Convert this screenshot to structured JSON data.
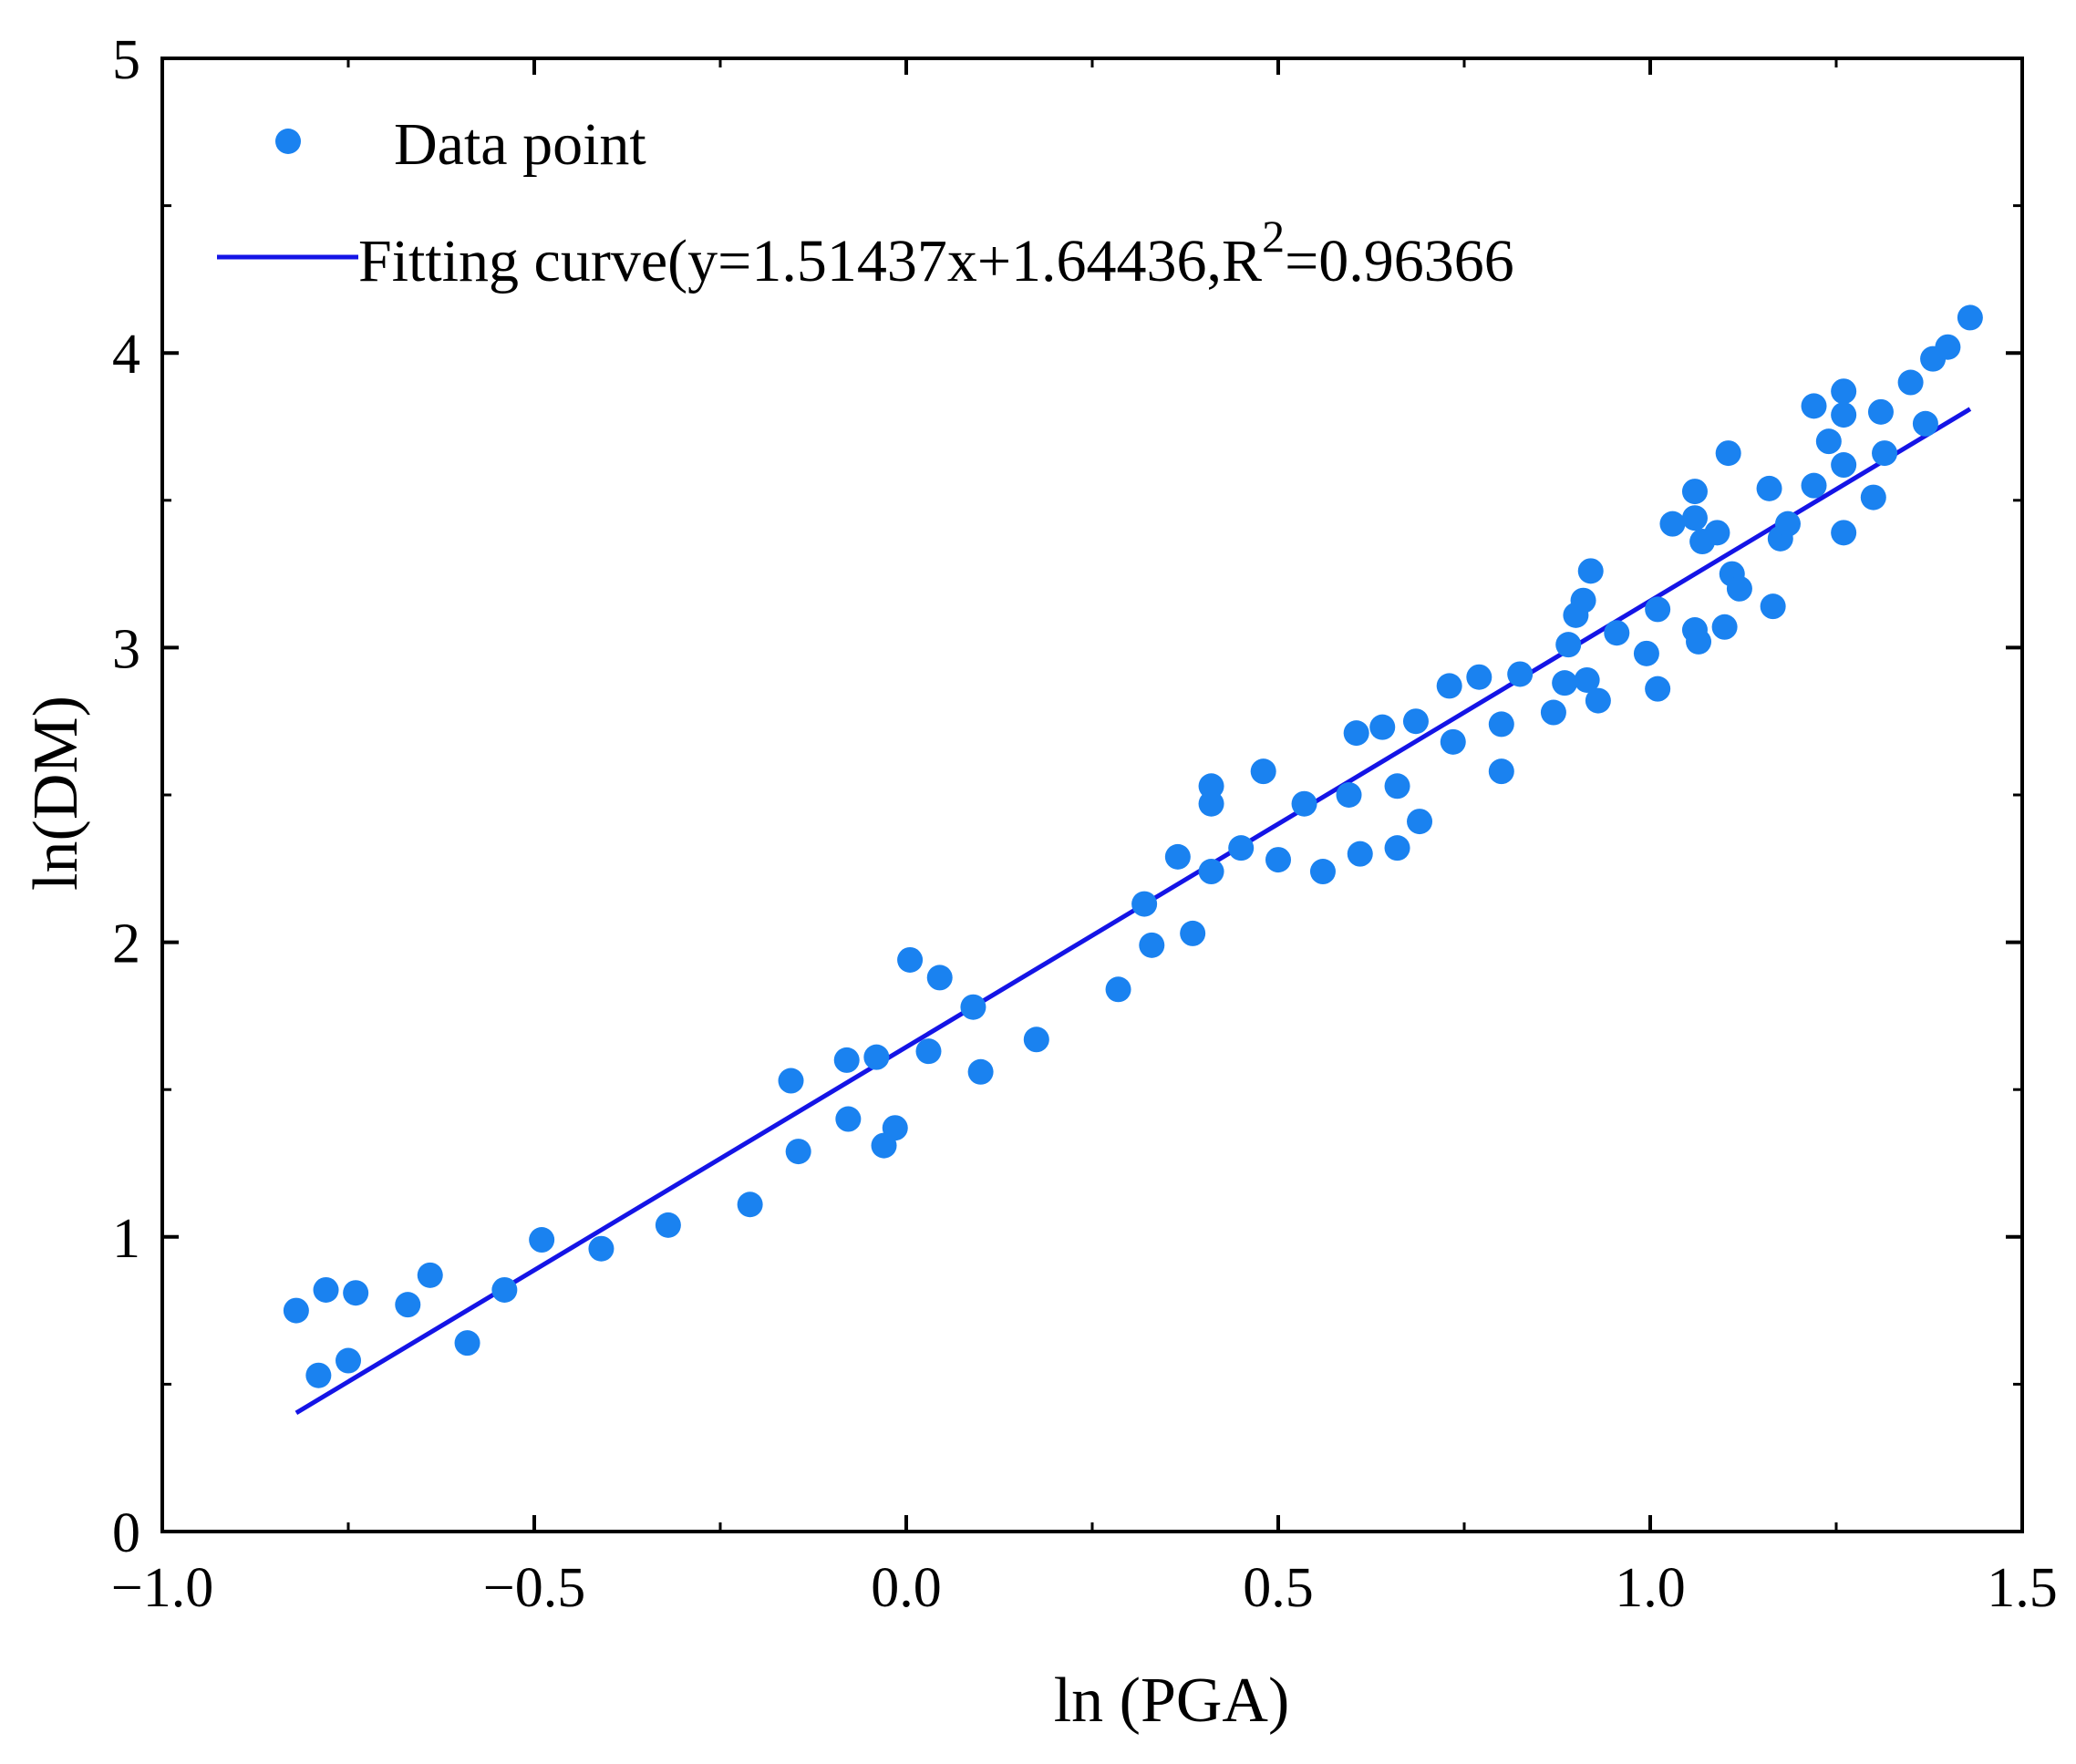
{
  "chart_data": {
    "type": "scatter",
    "title": "",
    "xlabel": "ln (PGA)",
    "ylabel": "ln(DM)",
    "xlim": [
      -1.0,
      1.5
    ],
    "ylim": [
      0,
      5
    ],
    "x_ticks": [
      "-1.0",
      "-0.5",
      "0.0",
      "0.5",
      "1.0",
      "1.5"
    ],
    "y_ticks": [
      "0",
      "1",
      "2",
      "3",
      "4",
      "5"
    ],
    "grid": false,
    "legend_position": "top-left",
    "colors": {
      "points": "#1a82f0",
      "line": "#1414e6"
    },
    "legend": {
      "points_label": "Data point",
      "fit_label_prefix": "Fitting curve(y=1.51437x+1.64436,R",
      "fit_label_sup": "2",
      "fit_label_suffix": "=0.96366"
    },
    "fit": {
      "slope": 1.51437,
      "intercept": 1.64436,
      "r2": 0.96366,
      "x_range": [
        -0.82,
        1.43
      ]
    },
    "series": [
      {
        "name": "Data point",
        "points": [
          [
            -0.82,
            0.75
          ],
          [
            -0.79,
            0.53
          ],
          [
            -0.78,
            0.82
          ],
          [
            -0.75,
            0.58
          ],
          [
            -0.74,
            0.81
          ],
          [
            -0.67,
            0.77
          ],
          [
            -0.64,
            0.87
          ],
          [
            -0.59,
            0.64
          ],
          [
            -0.54,
            0.82
          ],
          [
            -0.49,
            0.99
          ],
          [
            -0.41,
            0.96
          ],
          [
            -0.32,
            1.04
          ],
          [
            -0.21,
            1.11
          ],
          [
            -0.155,
            1.53
          ],
          [
            -0.145,
            1.29
          ],
          [
            -0.08,
            1.6
          ],
          [
            -0.078,
            1.4
          ],
          [
            -0.04,
            1.61
          ],
          [
            -0.03,
            1.31
          ],
          [
            -0.015,
            1.37
          ],
          [
            0.005,
            1.94
          ],
          [
            0.03,
            1.63
          ],
          [
            0.045,
            1.88
          ],
          [
            0.09,
            1.78
          ],
          [
            0.1,
            1.56
          ],
          [
            0.175,
            1.67
          ],
          [
            0.285,
            1.84
          ],
          [
            0.32,
            2.13
          ],
          [
            0.33,
            1.99
          ],
          [
            0.365,
            2.29
          ],
          [
            0.385,
            2.03
          ],
          [
            0.41,
            2.53
          ],
          [
            0.41,
            2.47
          ],
          [
            0.41,
            2.24
          ],
          [
            0.45,
            2.32
          ],
          [
            0.48,
            2.58
          ],
          [
            0.5,
            2.28
          ],
          [
            0.535,
            2.47
          ],
          [
            0.56,
            2.24
          ],
          [
            0.595,
            2.5
          ],
          [
            0.605,
            2.71
          ],
          [
            0.61,
            2.3
          ],
          [
            0.64,
            2.73
          ],
          [
            0.66,
            2.53
          ],
          [
            0.66,
            2.32
          ],
          [
            0.685,
            2.75
          ],
          [
            0.69,
            2.41
          ],
          [
            0.73,
            2.87
          ],
          [
            0.735,
            2.68
          ],
          [
            0.77,
            2.9
          ],
          [
            0.8,
            2.58
          ],
          [
            0.8,
            2.74
          ],
          [
            0.825,
            2.91
          ],
          [
            0.87,
            2.78
          ],
          [
            0.885,
            2.88
          ],
          [
            0.89,
            3.01
          ],
          [
            0.9,
            3.11
          ],
          [
            0.91,
            3.16
          ],
          [
            0.915,
            2.89
          ],
          [
            0.92,
            3.26
          ],
          [
            0.93,
            2.82
          ],
          [
            0.955,
            3.05
          ],
          [
            0.995,
            2.98
          ],
          [
            1.01,
            3.13
          ],
          [
            1.01,
            2.86
          ],
          [
            1.03,
            3.42
          ],
          [
            1.06,
            3.53
          ],
          [
            1.06,
            3.44
          ],
          [
            1.06,
            3.06
          ],
          [
            1.065,
            3.02
          ],
          [
            1.07,
            3.36
          ],
          [
            1.09,
            3.39
          ],
          [
            1.1,
            3.07
          ],
          [
            1.105,
            3.66
          ],
          [
            1.11,
            3.25
          ],
          [
            1.12,
            3.2
          ],
          [
            1.16,
            3.54
          ],
          [
            1.165,
            3.14
          ],
          [
            1.175,
            3.37
          ],
          [
            1.185,
            3.42
          ],
          [
            1.22,
            3.82
          ],
          [
            1.22,
            3.55
          ],
          [
            1.24,
            3.7
          ],
          [
            1.26,
            3.87
          ],
          [
            1.26,
            3.79
          ],
          [
            1.26,
            3.62
          ],
          [
            1.26,
            3.39
          ],
          [
            1.3,
            3.51
          ],
          [
            1.31,
            3.8
          ],
          [
            1.315,
            3.66
          ],
          [
            1.35,
            3.9
          ],
          [
            1.37,
            3.76
          ],
          [
            1.38,
            3.98
          ],
          [
            1.4,
            4.02
          ],
          [
            1.43,
            4.12
          ]
        ]
      }
    ]
  }
}
